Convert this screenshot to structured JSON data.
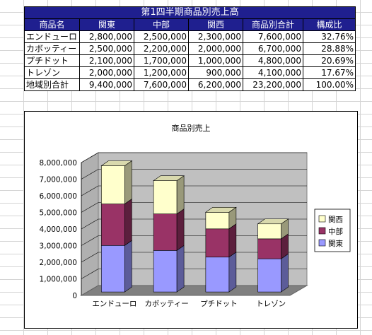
{
  "table": {
    "title": "第1四半期商品別売上高",
    "headers": [
      "商品名",
      "関東",
      "中部",
      "関西",
      "商品別合計",
      "構成比"
    ],
    "rows": [
      [
        "エンドューロ",
        "2,800,000",
        "2,500,000",
        "2,300,000",
        "7,600,000",
        "32.76%"
      ],
      [
        "カボッティー",
        "2,500,000",
        "2,200,000",
        "2,000,000",
        "6,700,000",
        "28.88%"
      ],
      [
        "プチドット",
        "2,100,000",
        "1,700,000",
        "1,000,000",
        "4,800,000",
        "20.69%"
      ],
      [
        "トレゾン",
        "2,000,000",
        "1,200,000",
        "900,000",
        "4,100,000",
        "17.67%"
      ],
      [
        "地域別合計",
        "9,400,000",
        "7,600,000",
        "6,200,000",
        "23,200,000",
        "100.00%"
      ]
    ]
  },
  "chart_data": {
    "type": "bar",
    "stacked": true,
    "three_d": true,
    "title": "商品別売上",
    "categories": [
      "エンドューロ",
      "カボッティー",
      "プチドット",
      "トレゾン"
    ],
    "series": [
      {
        "name": "関東",
        "values": [
          2800000,
          2500000,
          2100000,
          2000000
        ],
        "color": "#9999ff"
      },
      {
        "name": "中部",
        "values": [
          2500000,
          2200000,
          1700000,
          1200000
        ],
        "color": "#993366"
      },
      {
        "name": "関西",
        "values": [
          2300000,
          2000000,
          1000000,
          900000
        ],
        "color": "#ffffcc"
      }
    ],
    "legend_order": [
      "関西",
      "中部",
      "関東"
    ],
    "ylim": [
      0,
      8000000
    ],
    "yticks": [
      "0",
      "1,000,000",
      "2,000,000",
      "3,000,000",
      "4,000,000",
      "5,000,000",
      "6,000,000",
      "7,000,000",
      "8,000,000"
    ],
    "grid": true,
    "legend_position": "right",
    "wall_color": "#c0c0c0",
    "floor_color": "#808080"
  }
}
